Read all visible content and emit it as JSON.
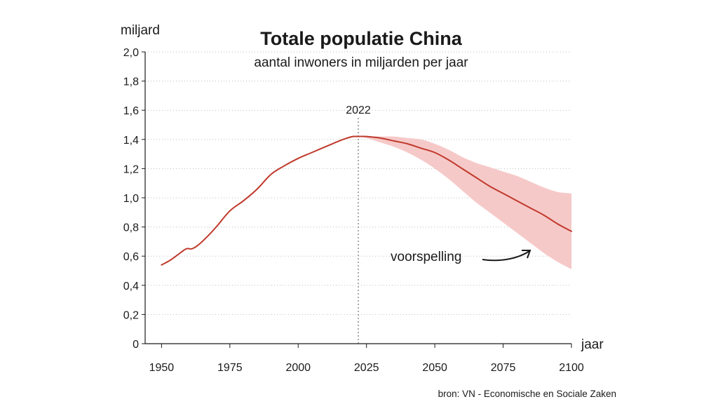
{
  "chart_data": {
    "type": "line",
    "title": "Totale populatie China",
    "subtitle": "aantal inwoners in miljarden per jaar",
    "ylabel": "miljard",
    "xlabel": "jaar",
    "source": "bron: VN - Economische en Sociale Zaken",
    "xlim": [
      1944,
      2100
    ],
    "ylim": [
      0,
      2.0
    ],
    "x_ticks": [
      1950,
      1975,
      2000,
      2025,
      2050,
      2075,
      2100
    ],
    "x_tick_labels": [
      "1950",
      "1975",
      "2000",
      "2025",
      "2050",
      "2075",
      "2100"
    ],
    "y_ticks": [
      0,
      0.2,
      0.4,
      0.6,
      0.8,
      1.0,
      1.2,
      1.4,
      1.6,
      1.8,
      2.0
    ],
    "y_tick_labels": [
      "0",
      "0,2",
      "0,4",
      "0,6",
      "0,8",
      "1,0",
      "1,2",
      "1,4",
      "1,6",
      "1,8",
      "2,0"
    ],
    "grid": "horizontal-dotted",
    "line_color": "#c0392b",
    "band_color": "#f6c9c9",
    "marker": {
      "x": 2022,
      "label": "2022"
    },
    "annotation": {
      "text": "voorspelling"
    },
    "series": [
      {
        "x": [
          1950,
          1953,
          1956,
          1959,
          1961,
          1963,
          1966,
          1970,
          1975,
          1980,
          1985,
          1990,
          1995,
          2000,
          2005,
          2010,
          2015,
          2018,
          2020,
          2022
        ],
        "values": [
          0.54,
          0.57,
          0.61,
          0.65,
          0.65,
          0.67,
          0.72,
          0.8,
          0.91,
          0.98,
          1.06,
          1.16,
          1.22,
          1.27,
          1.31,
          1.35,
          1.39,
          1.41,
          1.42,
          1.42
        ]
      },
      {
        "x": [
          2022,
          2025,
          2030,
          2035,
          2040,
          2045,
          2050,
          2055,
          2060,
          2065,
          2070,
          2075,
          2080,
          2085,
          2090,
          2095,
          2100
        ],
        "values": [
          1.42,
          1.42,
          1.41,
          1.39,
          1.37,
          1.34,
          1.31,
          1.26,
          1.2,
          1.14,
          1.08,
          1.03,
          0.98,
          0.93,
          0.88,
          0.82,
          0.77
        ]
      }
    ],
    "projection_band": {
      "x": [
        2022,
        2025,
        2030,
        2035,
        2040,
        2045,
        2050,
        2055,
        2060,
        2065,
        2070,
        2075,
        2080,
        2085,
        2090,
        2095,
        2100
      ],
      "upper": [
        1.42,
        1.42,
        1.42,
        1.42,
        1.41,
        1.4,
        1.37,
        1.33,
        1.28,
        1.24,
        1.21,
        1.18,
        1.15,
        1.11,
        1.07,
        1.04,
        1.03
      ],
      "lower": [
        1.42,
        1.41,
        1.38,
        1.35,
        1.31,
        1.26,
        1.2,
        1.13,
        1.05,
        0.97,
        0.9,
        0.83,
        0.76,
        0.69,
        0.62,
        0.56,
        0.51
      ]
    }
  }
}
